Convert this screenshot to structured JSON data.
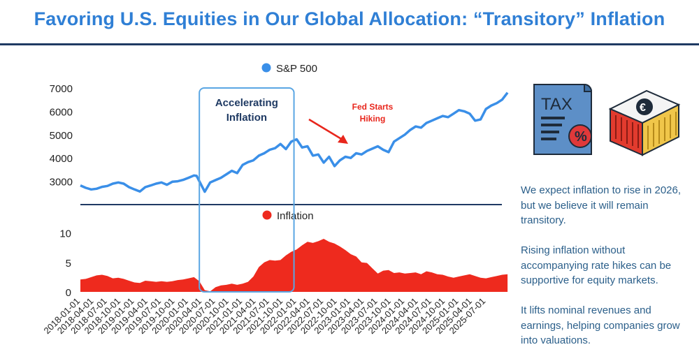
{
  "title": "Favoring U.S. Equities in Our Global Allocation: “Transitory” Inflation",
  "colors": {
    "title": "#2f7fd5",
    "rule": "#1f3a63",
    "sp500": "#3a8fe8",
    "inflation": "#ee2a1e",
    "highlight_box": "#5aa6e3",
    "annotation_arrow": "#e8261c",
    "side_text": "#2b5f8a",
    "axis_text": "#222222"
  },
  "side_notes": [
    "We expect inflation to rise in 2026, but we believe it will remain transitory.",
    "Rising inflation without accompanying rate hikes can be supportive for equity markets.",
    "It lifts nominal revenues and earnings, helping companies grow into valuations."
  ],
  "icons": [
    "tax-document-icon",
    "euro-shipping-container-icon"
  ],
  "chart_data": [
    {
      "type": "line",
      "legend": "S&P 500",
      "legend_position": "top-center",
      "ylim": [
        2300,
        7150
      ],
      "yticks": [
        3000,
        4000,
        5000,
        6000,
        7000
      ],
      "series": [
        {
          "name": "S&P 500",
          "x": [
            2018.0,
            2018.1,
            2018.2,
            2018.3,
            2018.4,
            2018.5,
            2018.6,
            2018.7,
            2018.8,
            2018.9,
            2019.0,
            2019.1,
            2019.2,
            2019.3,
            2019.4,
            2019.5,
            2019.6,
            2019.7,
            2019.8,
            2019.9,
            2020.0,
            2020.1,
            2020.15,
            2020.2,
            2020.3,
            2020.4,
            2020.5,
            2020.6,
            2020.7,
            2020.8,
            2020.9,
            2021.0,
            2021.1,
            2021.2,
            2021.3,
            2021.4,
            2021.5,
            2021.6,
            2021.7,
            2021.8,
            2021.9,
            2022.0,
            2022.1,
            2022.2,
            2022.3,
            2022.4,
            2022.5,
            2022.6,
            2022.7,
            2022.8,
            2022.9,
            2023.0,
            2023.1,
            2023.2,
            2023.3,
            2023.4,
            2023.5,
            2023.6,
            2023.7,
            2023.8,
            2023.9,
            2024.0,
            2024.1,
            2024.2,
            2024.3,
            2024.4,
            2024.5,
            2024.6,
            2024.7,
            2024.8,
            2024.9,
            2025.0,
            2025.1,
            2025.2,
            2025.3,
            2025.4,
            2025.5,
            2025.6,
            2025.7,
            2025.8,
            2025.9
          ],
          "values": [
            2820,
            2720,
            2650,
            2680,
            2760,
            2800,
            2900,
            2950,
            2900,
            2750,
            2650,
            2560,
            2750,
            2820,
            2900,
            2950,
            2850,
            2980,
            3000,
            3060,
            3150,
            3250,
            3230,
            3000,
            2550,
            2950,
            3050,
            3150,
            3300,
            3450,
            3350,
            3700,
            3820,
            3900,
            4100,
            4200,
            4350,
            4420,
            4600,
            4380,
            4700,
            4800,
            4450,
            4500,
            4100,
            4150,
            3800,
            4050,
            3650,
            3900,
            4050,
            4000,
            4200,
            4150,
            4300,
            4400,
            4500,
            4350,
            4250,
            4700,
            4850,
            5000,
            5200,
            5350,
            5300,
            5500,
            5600,
            5700,
            5800,
            5750,
            5900,
            6050,
            6000,
            5900,
            5600,
            5650,
            6100,
            6250,
            6350,
            6500,
            6800
          ]
        }
      ]
    },
    {
      "type": "area",
      "legend": "Inflation",
      "legend_position": "top-center",
      "ylim": [
        0,
        12.2
      ],
      "yticks": [
        0,
        5,
        10
      ],
      "series": [
        {
          "name": "Inflation",
          "x": [
            2018.0,
            2018.1,
            2018.2,
            2018.3,
            2018.4,
            2018.5,
            2018.6,
            2018.7,
            2018.8,
            2018.9,
            2019.0,
            2019.1,
            2019.2,
            2019.3,
            2019.4,
            2019.5,
            2019.6,
            2019.7,
            2019.8,
            2019.9,
            2020.0,
            2020.1,
            2020.2,
            2020.3,
            2020.4,
            2020.5,
            2020.6,
            2020.7,
            2020.8,
            2020.9,
            2021.0,
            2021.1,
            2021.2,
            2021.3,
            2021.4,
            2021.5,
            2021.6,
            2021.7,
            2021.8,
            2021.9,
            2022.0,
            2022.1,
            2022.2,
            2022.3,
            2022.4,
            2022.5,
            2022.6,
            2022.7,
            2022.8,
            2022.9,
            2023.0,
            2023.1,
            2023.2,
            2023.3,
            2023.4,
            2023.5,
            2023.6,
            2023.7,
            2023.8,
            2023.9,
            2024.0,
            2024.1,
            2024.2,
            2024.3,
            2024.4,
            2024.5,
            2024.6,
            2024.7,
            2024.8,
            2024.9,
            2025.0,
            2025.1,
            2025.2,
            2025.3,
            2025.4,
            2025.5,
            2025.6,
            2025.7,
            2025.8,
            2025.9
          ],
          "values": [
            2.1,
            2.2,
            2.5,
            2.8,
            2.9,
            2.7,
            2.3,
            2.4,
            2.2,
            1.9,
            1.6,
            1.5,
            1.9,
            1.8,
            1.7,
            1.8,
            1.7,
            1.8,
            2.0,
            2.1,
            2.3,
            2.5,
            1.8,
            0.3,
            0.1,
            0.8,
            1.1,
            1.2,
            1.4,
            1.2,
            1.4,
            1.7,
            2.6,
            4.2,
            5.0,
            5.4,
            5.3,
            5.4,
            6.2,
            6.8,
            7.2,
            7.9,
            8.5,
            8.3,
            8.6,
            9.0,
            8.5,
            8.2,
            7.7,
            7.1,
            6.4,
            6.0,
            5.0,
            4.9,
            4.0,
            3.1,
            3.6,
            3.7,
            3.2,
            3.3,
            3.1,
            3.2,
            3.3,
            3.0,
            3.5,
            3.3,
            3.0,
            2.9,
            2.6,
            2.4,
            2.6,
            2.8,
            3.0,
            2.7,
            2.4,
            2.3,
            2.5,
            2.7,
            2.9,
            3.0
          ]
        }
      ]
    }
  ],
  "xaxis": {
    "xlim": [
      2018.0,
      2025.95
    ],
    "ticks": [
      "2018-01-01",
      "2018-04-01",
      "2018-07-01",
      "2018-10-01",
      "2019-01-01",
      "2019-04-01",
      "2019-07-01",
      "2019-10-01",
      "2020-01-01",
      "2020-04-01",
      "2020-07-01",
      "2020-10-01",
      "2021-01-01",
      "2021-04-01",
      "2021-07-01",
      "2021-10-01",
      "2022-01-01",
      "2022-04-01",
      "2022-07-01",
      "2022-10-01",
      "2023-01-01",
      "2023-04-01",
      "2023-07-01",
      "2023-10-01",
      "2024-01-01",
      "2024-04-01",
      "2024-07-01",
      "2024-10-01",
      "2025-01-01",
      "2025-04-01",
      "2025-07-01"
    ]
  },
  "annotations": {
    "highlight_label": "Accelerating Inflation",
    "highlight_range": [
      2020.2,
      2021.95
    ],
    "arrow_label": "Fed Starts Hiking"
  }
}
